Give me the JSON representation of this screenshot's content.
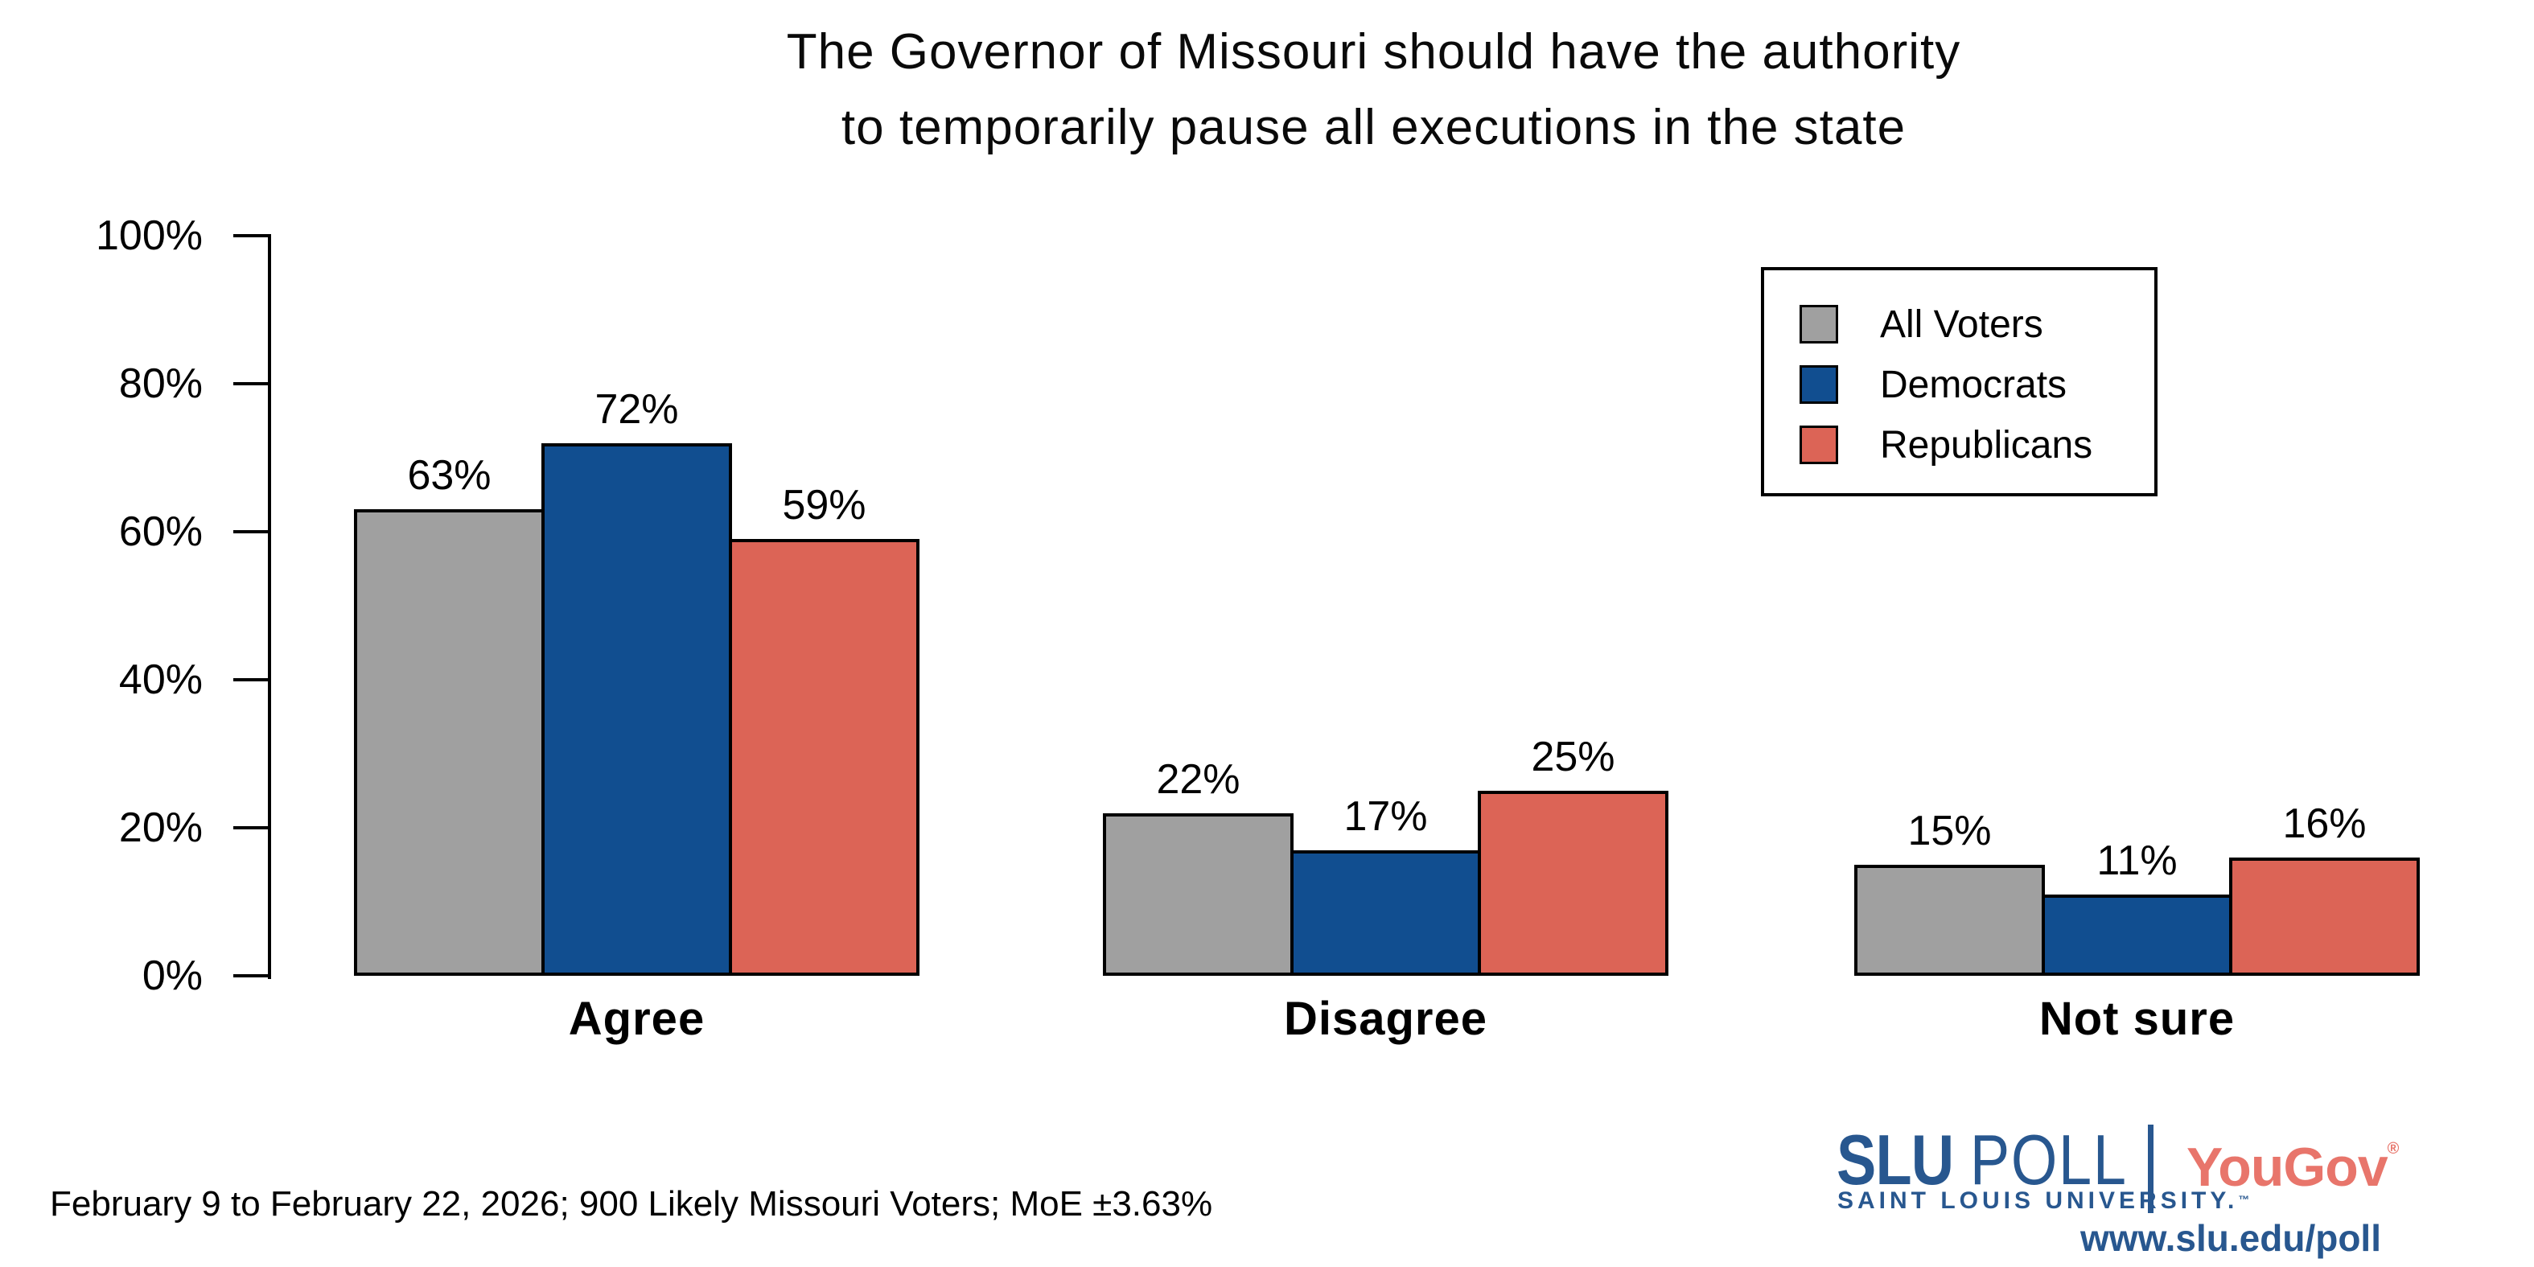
{
  "title": {
    "line1": "The Governor of Missouri should have the authority",
    "line2": "to temporarily pause all executions in the state"
  },
  "chart_data": {
    "type": "bar",
    "categories": [
      "Agree",
      "Disagree",
      "Not sure"
    ],
    "series": [
      {
        "name": "All Voters",
        "color": "#A0A0A0",
        "values": [
          63,
          22,
          15
        ]
      },
      {
        "name": "Democrats",
        "color": "#114E90",
        "values": [
          72,
          17,
          11
        ]
      },
      {
        "name": "Republicans",
        "color": "#DC6456",
        "values": [
          59,
          25,
          16
        ]
      }
    ],
    "title": "The Governor of Missouri should have the authority to temporarily pause all executions in the state",
    "xlabel": "",
    "ylabel": "",
    "ylim": [
      0,
      100
    ],
    "yticks": [
      {
        "label": "0%",
        "value": 0
      },
      {
        "label": "20%",
        "value": 20
      },
      {
        "label": "40%",
        "value": 40
      },
      {
        "label": "60%",
        "value": 60
      },
      {
        "label": "80%",
        "value": 80
      },
      {
        "label": "100%",
        "value": 100
      }
    ],
    "value_label_suffix": "%",
    "grid": false,
    "legend_position": "upper right",
    "bar_outline_color": "#000000"
  },
  "footer": {
    "note": "February 9 to February 22, 2026; 900 Likely Missouri Voters; MoE ±3.63%"
  },
  "branding": {
    "slu_word": "SLU",
    "poll_word": "POLL",
    "slu_subtitle": "SAINT LOUIS UNIVERSITY.",
    "slu_tm": "™",
    "partner": "YouGov",
    "partner_reg": "®",
    "url": "www.slu.edu/poll",
    "slu_blue": "#28578F",
    "yougov_coral": "#E8756B"
  }
}
